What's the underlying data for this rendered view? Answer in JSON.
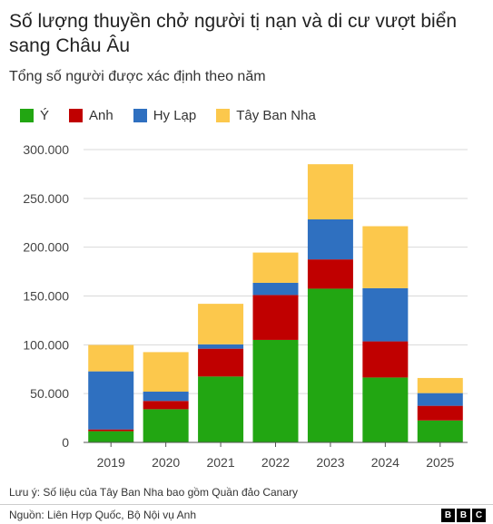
{
  "chart_data": {
    "type": "bar",
    "stacked": true,
    "title": "Số lượng thuyền chở người tị nạn và di cư vượt biển sang Châu Âu",
    "subtitle": "Tổng số người được xác định theo năm",
    "categories": [
      "2019",
      "2020",
      "2021",
      "2022",
      "2023",
      "2024",
      "2025"
    ],
    "series": [
      {
        "name": "Ý",
        "color": "#22a612",
        "values": [
          11500,
          34000,
          67500,
          105000,
          157500,
          66500,
          22500
        ]
      },
      {
        "name": "Anh",
        "color": "#c00000",
        "values": [
          1800,
          8500,
          28500,
          46000,
          30000,
          37000,
          15000
        ]
      },
      {
        "name": "Hy Lạp",
        "color": "#2f70c0",
        "values": [
          59500,
          9500,
          4500,
          12500,
          41000,
          54500,
          13000
        ]
      },
      {
        "name": "Tây Ban Nha",
        "color": "#fcc84c",
        "values": [
          27000,
          40500,
          41500,
          31000,
          56500,
          63500,
          15500
        ]
      }
    ],
    "ylim": [
      0,
      300000
    ],
    "yticks": [
      0,
      50000,
      100000,
      150000,
      200000,
      250000,
      300000
    ],
    "ytick_labels": [
      "0",
      "50.000",
      "100.000",
      "150.000",
      "200.000",
      "250.000",
      "300.000"
    ],
    "grid": true,
    "legend_position": "top-left"
  },
  "note": "Lưu ý: Số liệu của Tây Ban Nha bao gồm Quần đảo Canary",
  "source": "Nguồn: Liên Hợp Quốc, Bộ Nội vụ Anh",
  "logo": {
    "letters": [
      "B",
      "B",
      "C"
    ]
  }
}
